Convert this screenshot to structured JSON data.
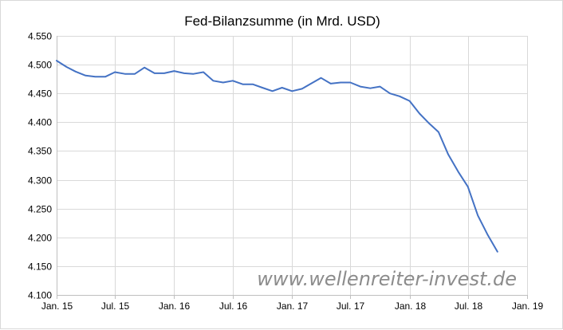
{
  "chart_data": {
    "type": "line",
    "title": "Fed-Bilanzsumme (in Mrd. USD)",
    "xlabel": "",
    "ylabel": "",
    "ylim": [
      4100,
      4550
    ],
    "y_ticks": [
      4100,
      4150,
      4200,
      4250,
      4300,
      4350,
      4400,
      4450,
      4500,
      4550
    ],
    "y_tick_labels": [
      "4.100",
      "4.150",
      "4.200",
      "4.250",
      "4.300",
      "4.350",
      "4.400",
      "4.450",
      "4.500",
      "4.550"
    ],
    "x_ticks": [
      "2015-01-01",
      "2015-07-01",
      "2016-01-01",
      "2016-07-01",
      "2017-01-01",
      "2017-07-01",
      "2018-01-01",
      "2018-07-01",
      "2019-01-01"
    ],
    "x_tick_labels": [
      "Jan. 15",
      "Jul. 15",
      "Jan. 16",
      "Jul. 16",
      "Jan. 17",
      "Jul. 17",
      "Jan. 18",
      "Jul. 18",
      "Jan. 19"
    ],
    "xlim": [
      "2015-01-01",
      "2019-01-01"
    ],
    "grid": true,
    "line_color": "#4472c4",
    "series": [
      {
        "x": [
          "2015-01-01",
          "2015-02-01",
          "2015-03-01",
          "2015-04-01",
          "2015-05-01",
          "2015-06-01",
          "2015-07-01",
          "2015-08-01",
          "2015-09-01",
          "2015-10-01",
          "2015-11-01",
          "2015-12-01",
          "2016-01-01",
          "2016-02-01",
          "2016-03-01",
          "2016-04-01",
          "2016-05-01",
          "2016-06-01",
          "2016-07-01",
          "2016-08-01",
          "2016-09-01",
          "2016-10-01",
          "2016-11-01",
          "2016-12-01",
          "2017-01-01",
          "2017-02-01",
          "2017-03-01",
          "2017-04-01",
          "2017-05-01",
          "2017-06-01",
          "2017-07-01",
          "2017-08-01",
          "2017-09-01",
          "2017-10-01",
          "2017-11-01",
          "2017-12-01",
          "2018-01-01",
          "2018-02-01",
          "2018-03-01",
          "2018-04-01",
          "2018-05-01",
          "2018-06-01",
          "2018-07-01",
          "2018-08-01",
          "2018-09-01",
          "2018-10-01"
        ],
        "values": [
          4507,
          4496,
          4488,
          4481,
          4479,
          4479,
          4487,
          4484,
          4484,
          4495,
          4485,
          4485,
          4489,
          4485,
          4484,
          4487,
          4472,
          4469,
          4472,
          4466,
          4466,
          4460,
          4454,
          4460,
          4454,
          4458,
          4467,
          4477,
          4467,
          4469,
          4469,
          4462,
          4459,
          4462,
          4450,
          4445,
          4437,
          4415,
          4399,
          4383,
          4344,
          4314,
          4288,
          4238,
          4204,
          4175
        ]
      }
    ]
  },
  "watermark": "www.wellenreiter-invest.de"
}
